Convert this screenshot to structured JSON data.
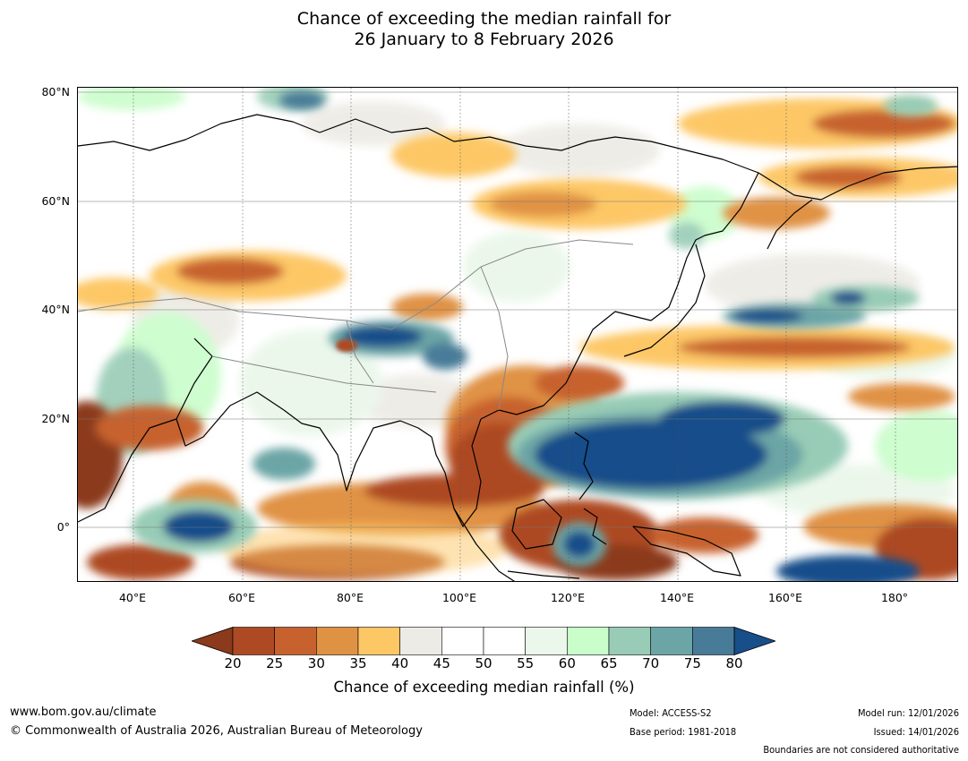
{
  "title_line1": "Chance of exceeding the median rainfall for",
  "title_line2": "26 January to 8 February 2026",
  "lat_labels": [
    "80°N",
    "60°N",
    "40°N",
    "20°N",
    "0°"
  ],
  "lon_labels": [
    "40°E",
    "60°E",
    "80°E",
    "100°E",
    "120°E",
    "140°E",
    "160°E",
    "180°"
  ],
  "colorbar": {
    "ticks": [
      "20",
      "25",
      "30",
      "35",
      "40",
      "45",
      "50",
      "55",
      "60",
      "65",
      "70",
      "75",
      "80"
    ],
    "title": "Chance of exceeding median rainfall (%)",
    "colors": [
      "#8b3a1c",
      "#ad4a24",
      "#c7622f",
      "#e09244",
      "#fdc766",
      "#edebe5",
      "#ffffff",
      "#ffffff",
      "#eaf7ea",
      "#c9fdca",
      "#98ccb6",
      "#6ca5a6",
      "#487b98",
      "#184e8a"
    ]
  },
  "footer": {
    "website": "www.bom.gov.au/climate",
    "copyright": "© Commonwealth of Australia 2026, Australian Bureau of Meteorology",
    "model": "Model: ACCESS-S2",
    "base_period": "Base period: 1981-2018",
    "model_run": "Model run: 12/01/2026",
    "issued": "Issued: 14/01/2026",
    "disclaimer": "Boundaries are not considered authoritative"
  }
}
